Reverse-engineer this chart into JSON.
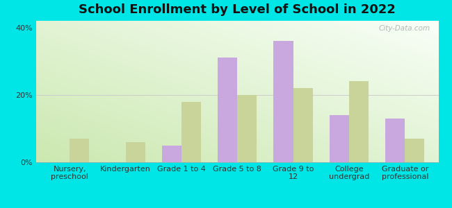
{
  "title": "School Enrollment by Level of School in 2022",
  "categories": [
    "Nursery,\npreschool",
    "Kindergarten",
    "Grade 1 to 4",
    "Grade 5 to 8",
    "Grade 9 to\n12",
    "College\nundergrad",
    "Graduate or\nprofessional"
  ],
  "zip_values": [
    0,
    0,
    5,
    31,
    36,
    14,
    13
  ],
  "ct_values": [
    7,
    6,
    18,
    20,
    22,
    24,
    7
  ],
  "zip_color": "#c9a8e0",
  "ct_color": "#c8d49a",
  "bg_color": "#00e5e5",
  "plot_bg_grad_bottom_left": "#cce8b0",
  "plot_bg_grad_top_right": "#f8fff8",
  "ylim": [
    0,
    42
  ],
  "yticks": [
    0,
    20,
    40
  ],
  "ytick_labels": [
    "0%",
    "20%",
    "40%"
  ],
  "title_fontsize": 13,
  "tick_fontsize": 8,
  "legend_fontsize": 9,
  "watermark": "City-Data.com"
}
